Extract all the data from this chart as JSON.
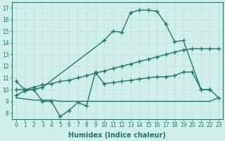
{
  "line1_x": [
    0,
    1,
    2,
    3,
    10,
    11,
    12,
    13,
    14,
    15,
    16,
    17,
    18,
    19,
    21,
    22
  ],
  "line1_y": [
    10.7,
    10.0,
    10.0,
    10.2,
    14.2,
    15.0,
    14.9,
    16.6,
    16.8,
    16.8,
    16.7,
    15.6,
    14.1,
    14.2,
    10.0,
    10.0
  ],
  "line2_x": [
    0,
    1,
    2,
    3,
    4,
    5,
    6,
    7,
    8,
    9,
    10,
    11,
    12,
    13,
    14,
    15,
    16,
    17,
    18,
    19,
    20,
    21,
    22,
    23
  ],
  "line2_y": [
    10.0,
    10.0,
    10.2,
    10.4,
    10.5,
    10.7,
    10.8,
    11.0,
    11.2,
    11.4,
    11.6,
    11.8,
    12.0,
    12.2,
    12.4,
    12.6,
    12.8,
    13.0,
    13.2,
    13.4,
    13.5,
    13.5,
    13.5,
    13.5
  ],
  "line3_x": [
    0,
    1,
    2,
    3,
    4,
    5,
    6,
    7,
    8,
    9,
    10,
    11,
    12,
    13,
    14,
    15,
    16,
    17,
    18,
    19,
    20,
    21,
    22,
    23
  ],
  "line3_y": [
    9.5,
    9.9,
    10.0,
    9.0,
    9.0,
    7.7,
    8.2,
    8.9,
    8.6,
    11.5,
    10.5,
    10.6,
    10.7,
    10.8,
    10.9,
    11.0,
    11.1,
    11.1,
    11.2,
    11.5,
    11.5,
    10.0,
    10.0,
    9.3
  ],
  "line4_x": [
    0,
    1,
    2,
    3,
    4,
    5,
    6,
    7,
    8,
    9,
    10,
    11,
    12,
    13,
    14,
    15,
    16,
    17,
    18,
    19,
    20,
    21,
    22,
    23
  ],
  "line4_y": [
    9.3,
    9.2,
    9.1,
    9.1,
    9.1,
    9.0,
    9.0,
    9.0,
    9.0,
    9.0,
    9.0,
    9.0,
    9.0,
    9.0,
    9.0,
    9.0,
    9.0,
    9.0,
    9.0,
    9.0,
    9.0,
    9.0,
    9.0,
    9.3
  ],
  "line_color": "#1a7a6e",
  "bg_color": "#d0eeea",
  "grid_color": "#b8ddd8",
  "xlabel": "Humidex (Indice chaleur)",
  "ylabel_ticks": [
    8,
    9,
    10,
    11,
    12,
    13,
    14,
    15,
    16,
    17
  ],
  "xlim": [
    -0.5,
    23.5
  ],
  "ylim": [
    7.5,
    17.5
  ],
  "xticks": [
    0,
    1,
    2,
    3,
    4,
    5,
    6,
    7,
    8,
    9,
    10,
    11,
    12,
    13,
    14,
    15,
    16,
    17,
    18,
    19,
    20,
    21,
    22,
    23
  ],
  "marker": "+",
  "marker_size": 4,
  "linewidth": 1.0,
  "xlabel_fontsize": 7,
  "tick_fontsize": 5.5
}
